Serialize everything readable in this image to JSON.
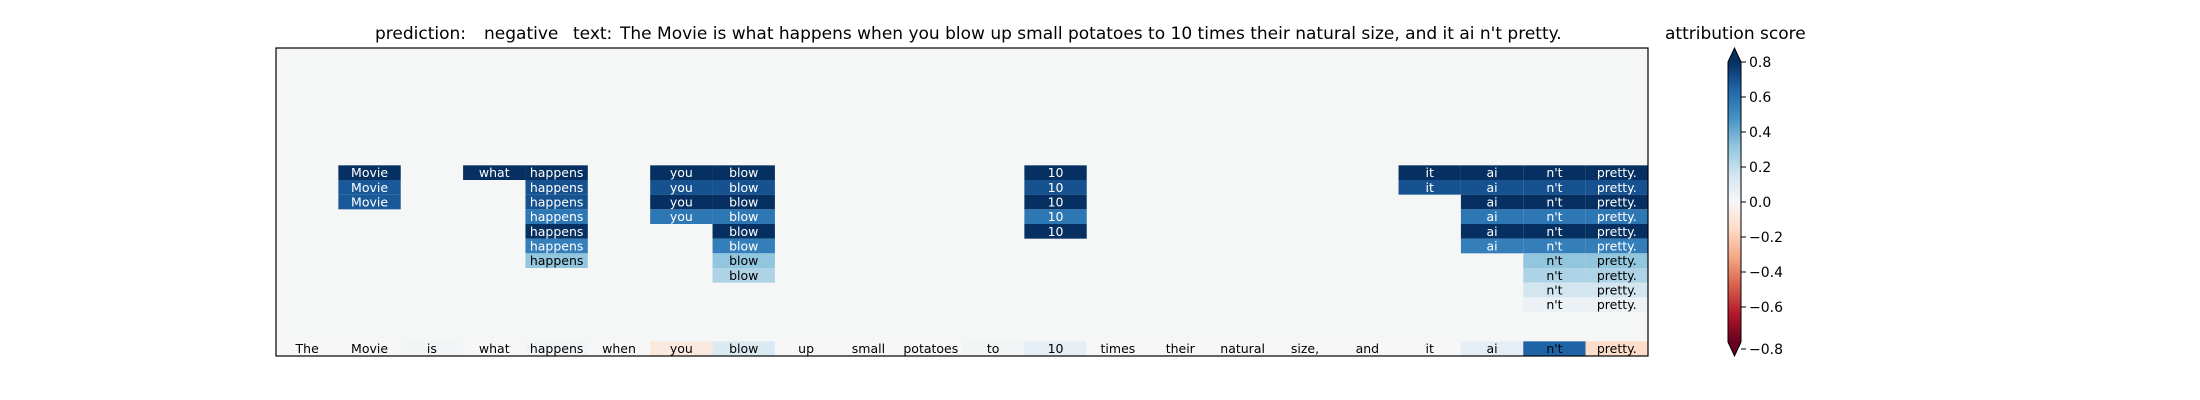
{
  "chart_data": {
    "type": "heatmap",
    "title_prefix": "prediction:",
    "prediction": "negative",
    "text_prefix": "text:",
    "text": "The Movie is what happens when you blow up small potatoes to 10 times their natural size, and it ai n't pretty.",
    "colorbar_label": "attribution score",
    "colorbar_ticks": [
      0.8,
      0.6,
      0.4,
      0.2,
      0.0,
      -0.2,
      -0.4,
      -0.6,
      -0.8
    ],
    "colorbar_tick_labels": [
      "0.8",
      "0.6",
      "0.4",
      "0.2",
      "0.0",
      "−0.2",
      "−0.4",
      "−0.6",
      "−0.8"
    ],
    "vmin": -0.8,
    "vmax": 0.8,
    "n_rows": 21,
    "tokens": [
      "The",
      "Movie",
      "is",
      "what",
      "happens",
      "when",
      "you",
      "blow",
      "up",
      "small",
      "potatoes",
      "to",
      "10",
      "times",
      "their",
      "natural",
      "size,",
      "and",
      "it",
      "ai",
      "n't",
      "pretty."
    ],
    "base_scores": [
      0.0,
      0.0,
      0.02,
      0.0,
      0.03,
      0.0,
      -0.08,
      0.12,
      0.0,
      0.0,
      0.0,
      0.02,
      0.08,
      0.0,
      0.0,
      0.0,
      0.0,
      0.0,
      0.0,
      0.08,
      0.65,
      -0.15
    ],
    "columns": [
      {
        "token": "The",
        "values": []
      },
      {
        "token": "Movie",
        "values": [
          0.95,
          0.68,
          0.68
        ]
      },
      {
        "token": "is",
        "values": []
      },
      {
        "token": "what",
        "values": [
          0.95
        ]
      },
      {
        "token": "happens",
        "values": [
          0.95,
          0.7,
          0.7,
          0.58,
          0.95,
          0.55,
          0.32
        ]
      },
      {
        "token": "when",
        "values": []
      },
      {
        "token": "you",
        "values": [
          0.95,
          0.7,
          0.95,
          0.58
        ]
      },
      {
        "token": "blow",
        "values": [
          0.95,
          0.7,
          0.95,
          0.58,
          0.95,
          0.55,
          0.32,
          0.25
        ]
      },
      {
        "token": "up",
        "values": []
      },
      {
        "token": "small",
        "values": []
      },
      {
        "token": "potatoes",
        "values": []
      },
      {
        "token": "to",
        "values": []
      },
      {
        "token": "10",
        "values": [
          0.95,
          0.7,
          0.95,
          0.58,
          0.95
        ]
      },
      {
        "token": "times",
        "values": []
      },
      {
        "token": "their",
        "values": []
      },
      {
        "token": "natural",
        "values": []
      },
      {
        "token": "size,",
        "values": []
      },
      {
        "token": "and",
        "values": []
      },
      {
        "token": "it",
        "values": [
          0.95,
          0.7
        ]
      },
      {
        "token": "ai",
        "values": [
          0.95,
          0.7,
          0.95,
          0.58,
          0.95,
          0.55
        ]
      },
      {
        "token": "n't",
        "values": [
          0.95,
          0.7,
          0.95,
          0.58,
          0.95,
          0.55,
          0.32,
          0.25,
          0.15,
          0.05
        ]
      },
      {
        "token": "pretty.",
        "values": [
          0.95,
          0.7,
          0.95,
          0.58,
          0.95,
          0.55,
          0.32,
          0.25,
          0.15,
          0.05
        ]
      }
    ],
    "colormap": "RdBu"
  }
}
